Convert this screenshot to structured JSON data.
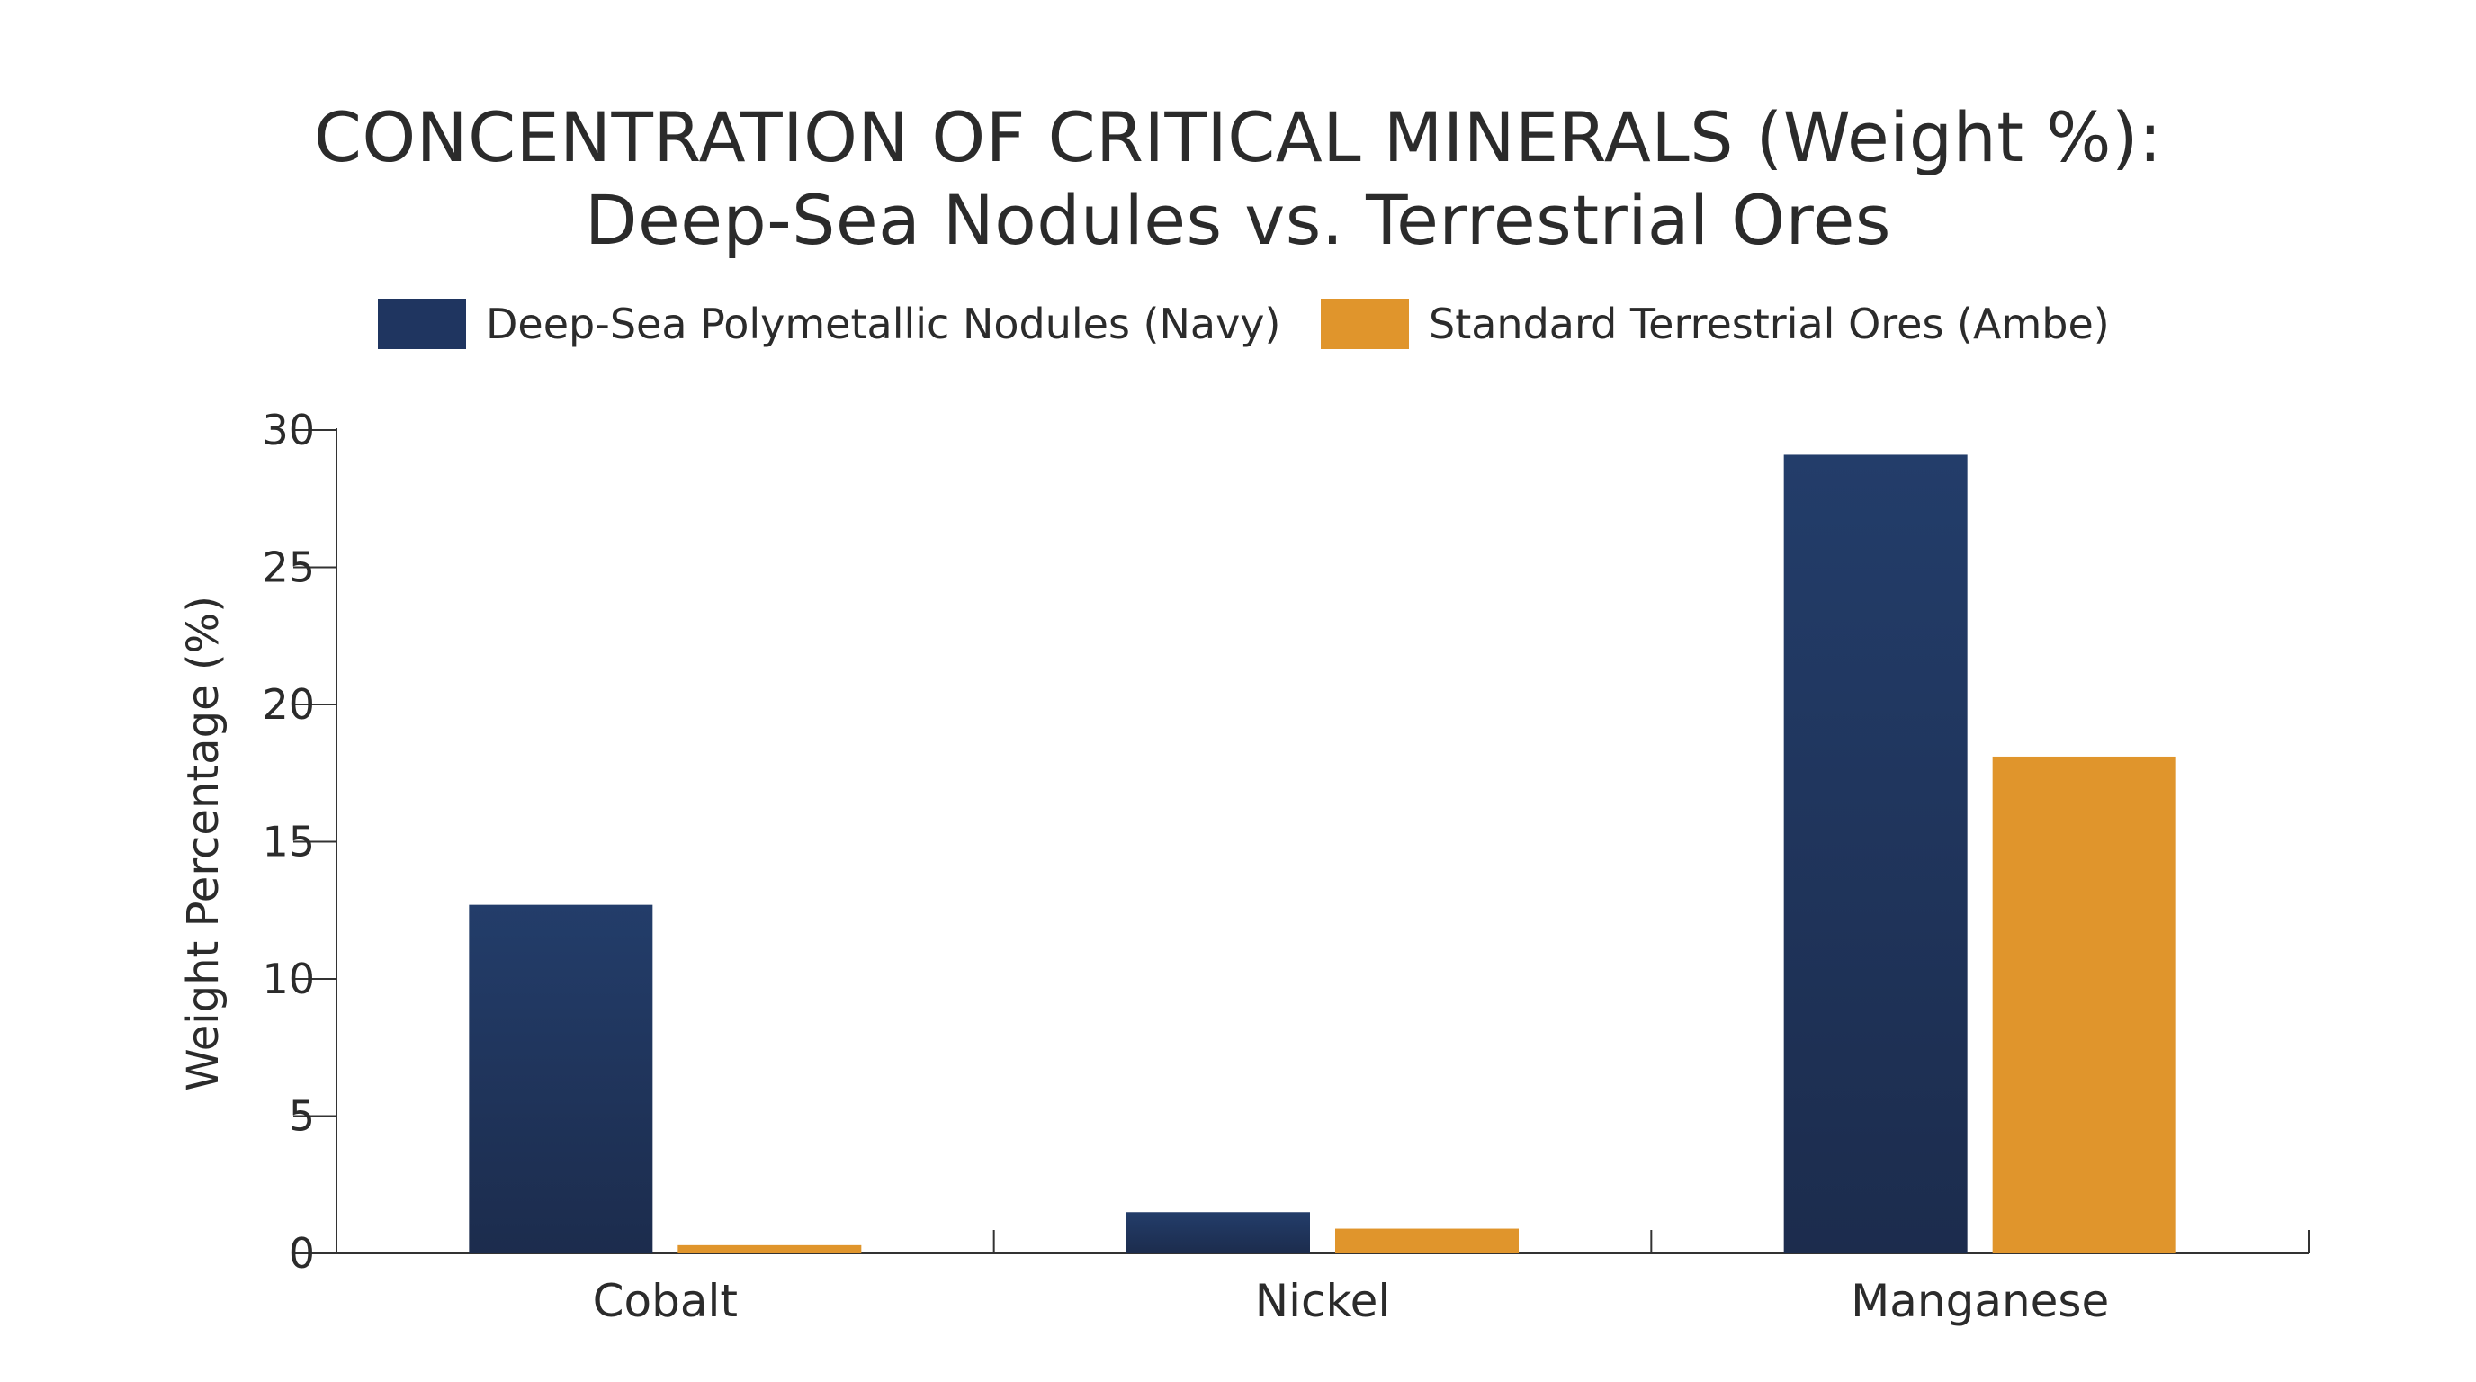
{
  "chart_data": {
    "type": "bar",
    "title": "CONCENTRATION OF CRITICAL MINERALS (Weight %):",
    "subtitle": "Deep-Sea Nodules vs. Terrestrial Ores",
    "categories": [
      "Cobalt",
      "Nickel",
      "Manganese"
    ],
    "series": [
      {
        "name": "Deep-Sea Polymetallic Nodules (Navy)",
        "color": "#1f3560",
        "values": [
          12.7,
          1.5,
          29.1
        ]
      },
      {
        "name": "Standard Terrestrial Ores (Ambe)",
        "color": "#e0952c",
        "values": [
          0.3,
          0.9,
          18.1
        ]
      }
    ],
    "xlabel": "",
    "ylabel": "Weight Percentage (%)",
    "ylim": [
      0,
      30
    ],
    "yticks": [
      0,
      5,
      10,
      15,
      20,
      25,
      30
    ],
    "grid": false,
    "legend_position": "top"
  }
}
